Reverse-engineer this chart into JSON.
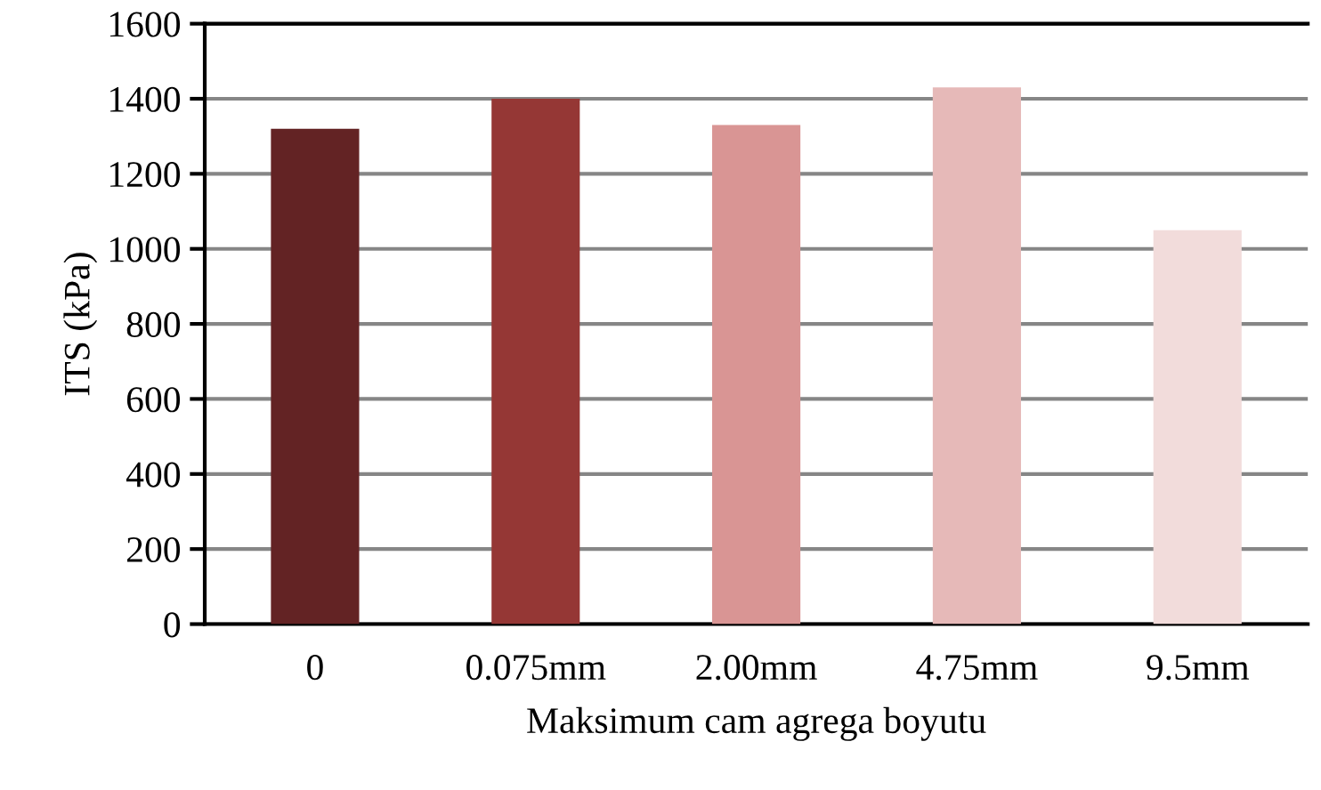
{
  "chart_data": {
    "type": "bar",
    "xlabel": "Maksimum cam agrega boyutu",
    "ylabel": "ITS (kPa)",
    "categories": [
      "0",
      "0.075mm",
      "2.00mm",
      "4.75mm",
      "9.5mm"
    ],
    "values": [
      1320,
      1400,
      1330,
      1430,
      1050
    ],
    "colors": [
      "#632324",
      "#953735",
      "#d99594",
      "#e6b9b8",
      "#f2dcdb"
    ],
    "ylim": [
      0,
      1600
    ],
    "yticks": [
      0,
      200,
      400,
      600,
      800,
      1000,
      1200,
      1400,
      1600
    ],
    "grid": "y"
  }
}
